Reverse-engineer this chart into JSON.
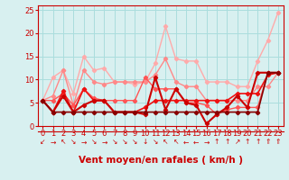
{
  "x": [
    0,
    1,
    2,
    3,
    4,
    5,
    6,
    7,
    8,
    9,
    10,
    11,
    12,
    13,
    14,
    15,
    16,
    17,
    18,
    19,
    20,
    21,
    22,
    23
  ],
  "series": [
    {
      "color": "#ffaaaa",
      "lw": 1.0,
      "marker": "D",
      "ms": 2.2,
      "y": [
        5.5,
        10.5,
        12.0,
        7.0,
        15.0,
        12.0,
        12.5,
        9.5,
        9.5,
        9.0,
        9.5,
        13.5,
        21.5,
        14.5,
        14.0,
        14.0,
        9.5,
        9.5,
        9.5,
        8.5,
        8.5,
        14.0,
        18.5,
        24.5
      ]
    },
    {
      "color": "#ff8888",
      "lw": 1.0,
      "marker": "D",
      "ms": 2.2,
      "y": [
        5.5,
        6.5,
        12.0,
        4.5,
        12.0,
        9.5,
        9.0,
        9.5,
        9.5,
        9.5,
        9.5,
        11.0,
        14.5,
        9.5,
        8.5,
        8.5,
        5.5,
        5.5,
        5.5,
        5.5,
        5.5,
        8.5,
        8.5,
        11.5
      ]
    },
    {
      "color": "#ff5555",
      "lw": 1.0,
      "marker": "D",
      "ms": 2.2,
      "y": [
        5.5,
        5.5,
        7.0,
        4.5,
        8.0,
        6.0,
        5.5,
        5.5,
        5.5,
        5.5,
        10.5,
        8.0,
        8.0,
        8.0,
        5.0,
        5.0,
        4.5,
        2.5,
        3.5,
        4.0,
        4.0,
        4.0,
        11.5,
        11.5
      ]
    },
    {
      "color": "#ee1111",
      "lw": 1.2,
      "marker": "D",
      "ms": 2.2,
      "y": [
        5.5,
        3.0,
        7.5,
        3.0,
        8.0,
        5.5,
        5.5,
        3.0,
        3.0,
        3.0,
        4.0,
        5.5,
        5.5,
        5.5,
        5.5,
        5.5,
        5.5,
        5.5,
        5.5,
        7.0,
        7.0,
        7.0,
        11.0,
        11.5
      ]
    },
    {
      "color": "#cc0000",
      "lw": 1.5,
      "marker": "D",
      "ms": 2.2,
      "y": [
        5.5,
        3.0,
        6.5,
        3.0,
        4.5,
        5.5,
        5.5,
        3.0,
        3.0,
        3.0,
        2.5,
        10.5,
        3.5,
        8.0,
        5.0,
        4.5,
        0.5,
        2.5,
        4.0,
        6.5,
        4.0,
        11.5,
        11.5,
        11.5
      ]
    },
    {
      "color": "#880000",
      "lw": 1.2,
      "marker": "D",
      "ms": 2.2,
      "y": [
        5.5,
        3.0,
        3.0,
        3.0,
        3.0,
        3.0,
        3.0,
        3.0,
        3.0,
        3.0,
        3.0,
        3.0,
        3.0,
        3.0,
        3.0,
        3.0,
        3.0,
        3.0,
        3.0,
        3.0,
        3.0,
        3.0,
        11.5,
        11.5
      ]
    }
  ],
  "arrow_symbols": [
    "↙",
    "→",
    "↖",
    "↘",
    "→",
    "↘",
    "→",
    "↘",
    "↘",
    "↘",
    "↓",
    "↘",
    "↖",
    "↖",
    "←",
    "←",
    "→",
    "↑",
    "↑",
    "↗",
    "↑",
    "↑",
    "⇑",
    "⇑"
  ],
  "xlabel": "Vent moyen/en rafales ( km/h )",
  "xlim": [
    -0.5,
    23.5
  ],
  "ylim": [
    0,
    26
  ],
  "yticks": [
    0,
    5,
    10,
    15,
    20,
    25
  ],
  "xticks": [
    0,
    1,
    2,
    3,
    4,
    5,
    6,
    7,
    8,
    9,
    10,
    11,
    12,
    13,
    14,
    15,
    16,
    17,
    18,
    19,
    20,
    21,
    22,
    23
  ],
  "bg_color": "#d8f0f0",
  "grid_color": "#aadddd",
  "axis_color": "#cc0000",
  "tick_color": "#cc0000",
  "xlabel_color": "#cc0000",
  "xlabel_fontsize": 7.5,
  "tick_fontsize": 6.0,
  "arrow_fontsize": 5.5
}
